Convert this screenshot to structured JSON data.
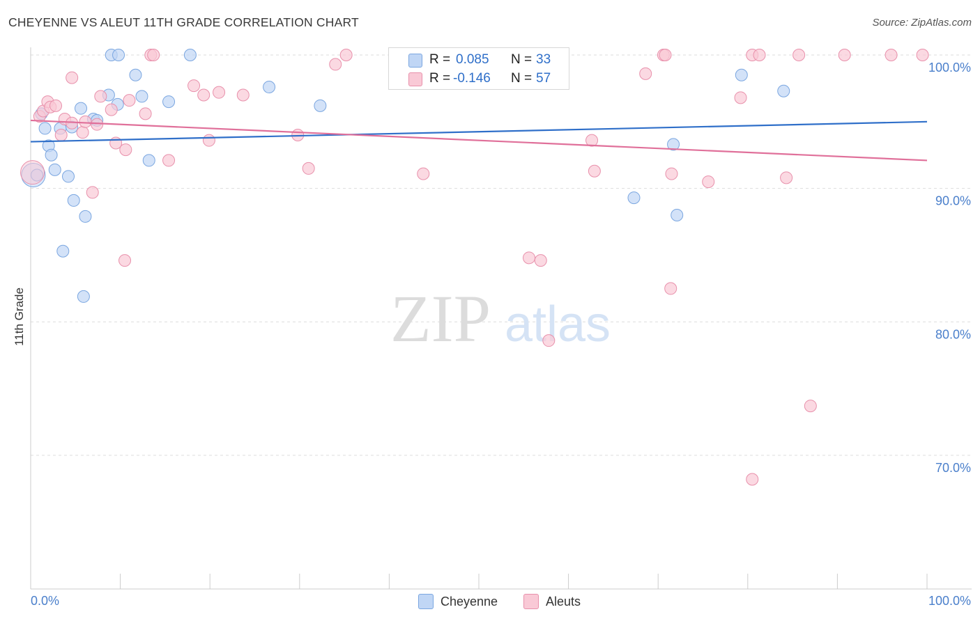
{
  "title": "CHEYENNE VS ALEUT 11TH GRADE CORRELATION CHART",
  "source": "Source: ZipAtlas.com",
  "watermark": {
    "zip": "ZIP",
    "atlas": "atlas"
  },
  "legend": {
    "rows": [
      {
        "r_label": "R =",
        "r_value": "0.085",
        "n_label": "N =",
        "n_value": "33",
        "color": "#4a86d8"
      },
      {
        "r_label": "R =",
        "r_value": "-0.146",
        "n_label": "N =",
        "n_value": "57",
        "color": "#e8799c"
      }
    ]
  },
  "bottom_legend": {
    "series_a": "Cheyenne",
    "series_b": "Aleuts"
  },
  "colors": {
    "cheyenne_fill": "#c0d6f5",
    "cheyenne_stroke": "#7aa6e0",
    "cheyenne_line": "#2f6fc9",
    "aleuts_fill": "#f9c9d6",
    "aleuts_stroke": "#e890ab",
    "aleuts_line": "#e0709a",
    "tick_label": "#4a7fcb",
    "grid": "#dddddd"
  },
  "chart_data": {
    "type": "scatter",
    "title": "CHEYENNE VS ALEUT 11TH GRADE CORRELATION CHART",
    "xlabel": "",
    "ylabel": "11th Grade",
    "xlim": [
      0,
      100
    ],
    "ylim": [
      60,
      101
    ],
    "x_tick_labels": [
      "0.0%",
      "100.0%"
    ],
    "y_ticks": [
      70,
      80,
      90,
      100
    ],
    "y_tick_labels": [
      "70.0%",
      "80.0%",
      "90.0%",
      "100.0%"
    ],
    "grid": true,
    "legend_position": "top-center",
    "series": [
      {
        "name": "Cheyenne",
        "r": 0.085,
        "n": 33,
        "trend": {
          "x": [
            0,
            100
          ],
          "y": [
            93.5,
            95.0
          ]
        },
        "points": [
          {
            "x": 0.3,
            "y": 91.0,
            "big": true
          },
          {
            "x": 0.7,
            "y": 91.0
          },
          {
            "x": 1.2,
            "y": 95.6
          },
          {
            "x": 1.6,
            "y": 94.5
          },
          {
            "x": 2.0,
            "y": 93.2
          },
          {
            "x": 2.3,
            "y": 92.5
          },
          {
            "x": 2.7,
            "y": 91.4
          },
          {
            "x": 3.3,
            "y": 94.5
          },
          {
            "x": 4.2,
            "y": 90.9
          },
          {
            "x": 4.6,
            "y": 94.6
          },
          {
            "x": 4.8,
            "y": 89.1
          },
          {
            "x": 3.6,
            "y": 85.3
          },
          {
            "x": 5.6,
            "y": 96.0
          },
          {
            "x": 5.9,
            "y": 81.9
          },
          {
            "x": 6.1,
            "y": 87.9
          },
          {
            "x": 7.0,
            "y": 95.2
          },
          {
            "x": 7.4,
            "y": 95.1
          },
          {
            "x": 8.7,
            "y": 97.0
          },
          {
            "x": 9.7,
            "y": 96.3
          },
          {
            "x": 9.0,
            "y": 100.0
          },
          {
            "x": 9.8,
            "y": 100.0
          },
          {
            "x": 11.7,
            "y": 98.5
          },
          {
            "x": 12.4,
            "y": 96.9
          },
          {
            "x": 13.2,
            "y": 92.1
          },
          {
            "x": 15.4,
            "y": 96.5
          },
          {
            "x": 17.8,
            "y": 100.0
          },
          {
            "x": 26.6,
            "y": 97.6
          },
          {
            "x": 32.3,
            "y": 96.2
          },
          {
            "x": 67.3,
            "y": 89.3
          },
          {
            "x": 71.7,
            "y": 93.3
          },
          {
            "x": 72.1,
            "y": 88.0
          },
          {
            "x": 79.3,
            "y": 98.5
          },
          {
            "x": 84.0,
            "y": 97.3
          }
        ]
      },
      {
        "name": "Aleuts",
        "r": -0.146,
        "n": 57,
        "trend": {
          "x": [
            0,
            100
          ],
          "y": [
            95.1,
            92.1
          ]
        },
        "points": [
          {
            "x": 0.2,
            "y": 91.2,
            "big": true
          },
          {
            "x": 1.0,
            "y": 95.4
          },
          {
            "x": 1.4,
            "y": 95.8
          },
          {
            "x": 1.9,
            "y": 96.5
          },
          {
            "x": 2.2,
            "y": 96.1
          },
          {
            "x": 2.8,
            "y": 96.2
          },
          {
            "x": 3.4,
            "y": 94.0
          },
          {
            "x": 3.8,
            "y": 95.2
          },
          {
            "x": 4.6,
            "y": 94.9
          },
          {
            "x": 5.8,
            "y": 94.2
          },
          {
            "x": 6.1,
            "y": 95.0
          },
          {
            "x": 4.6,
            "y": 98.3
          },
          {
            "x": 6.9,
            "y": 89.7
          },
          {
            "x": 7.4,
            "y": 94.8
          },
          {
            "x": 7.8,
            "y": 96.9
          },
          {
            "x": 9.0,
            "y": 95.9
          },
          {
            "x": 9.5,
            "y": 93.4
          },
          {
            "x": 10.6,
            "y": 92.9
          },
          {
            "x": 11.0,
            "y": 96.6
          },
          {
            "x": 10.5,
            "y": 84.6
          },
          {
            "x": 12.8,
            "y": 95.6
          },
          {
            "x": 13.4,
            "y": 100.0
          },
          {
            "x": 13.7,
            "y": 100.0
          },
          {
            "x": 15.4,
            "y": 92.1
          },
          {
            "x": 18.2,
            "y": 97.7
          },
          {
            "x": 19.3,
            "y": 97.0
          },
          {
            "x": 19.9,
            "y": 93.6
          },
          {
            "x": 21.0,
            "y": 97.2
          },
          {
            "x": 23.7,
            "y": 97.0
          },
          {
            "x": 29.8,
            "y": 94.0
          },
          {
            "x": 31.0,
            "y": 91.5
          },
          {
            "x": 34.0,
            "y": 99.3
          },
          {
            "x": 35.2,
            "y": 100.0
          },
          {
            "x": 43.8,
            "y": 91.1
          },
          {
            "x": 47.3,
            "y": 100.0
          },
          {
            "x": 55.6,
            "y": 84.8
          },
          {
            "x": 56.7,
            "y": 100.0
          },
          {
            "x": 56.9,
            "y": 84.6
          },
          {
            "x": 57.8,
            "y": 78.6
          },
          {
            "x": 62.6,
            "y": 93.6
          },
          {
            "x": 62.9,
            "y": 91.3
          },
          {
            "x": 68.6,
            "y": 98.6
          },
          {
            "x": 70.6,
            "y": 100.0
          },
          {
            "x": 70.8,
            "y": 100.0
          },
          {
            "x": 71.5,
            "y": 91.1
          },
          {
            "x": 71.4,
            "y": 82.5
          },
          {
            "x": 75.6,
            "y": 90.5
          },
          {
            "x": 79.2,
            "y": 96.8
          },
          {
            "x": 80.5,
            "y": 100.0
          },
          {
            "x": 81.3,
            "y": 100.0
          },
          {
            "x": 80.5,
            "y": 68.2
          },
          {
            "x": 84.3,
            "y": 90.8
          },
          {
            "x": 85.7,
            "y": 100.0
          },
          {
            "x": 87.0,
            "y": 73.7
          },
          {
            "x": 90.8,
            "y": 100.0
          },
          {
            "x": 96.0,
            "y": 100.0
          },
          {
            "x": 99.5,
            "y": 100.0
          }
        ]
      }
    ]
  }
}
